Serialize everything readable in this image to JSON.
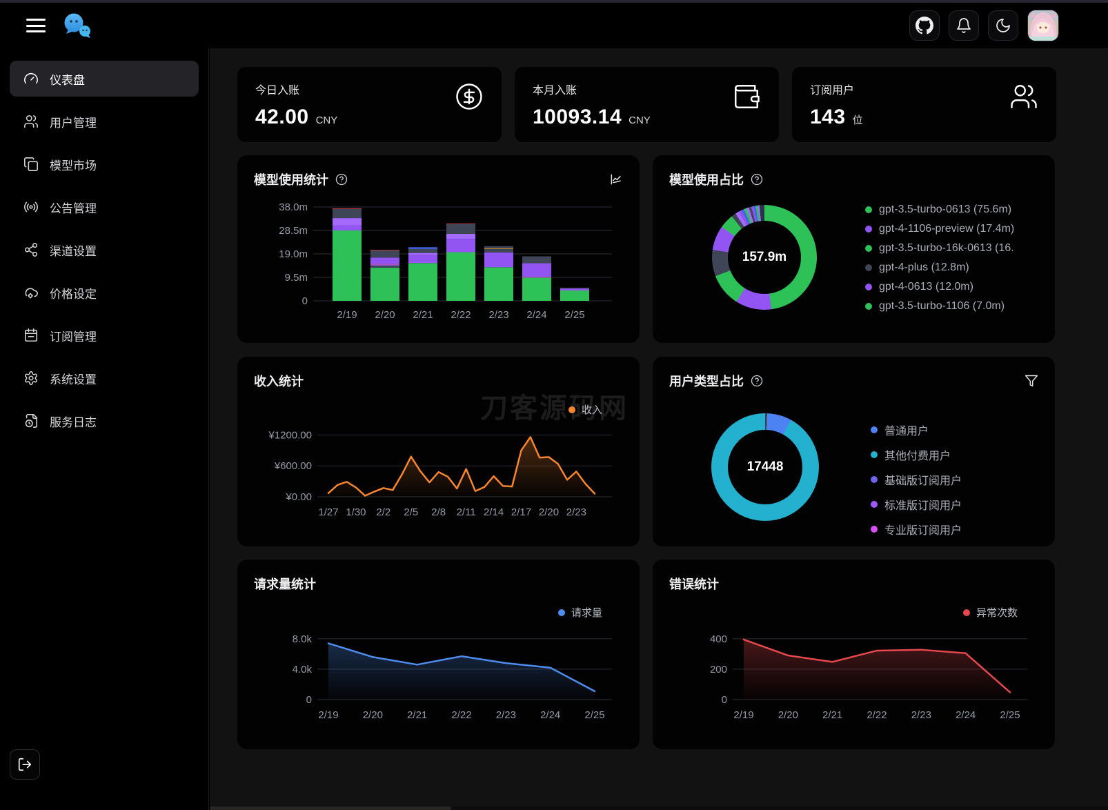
{
  "topbar": {
    "logo": "chat-bubbles-logo",
    "buttons": [
      {
        "icon": "github"
      },
      {
        "icon": "bell"
      },
      {
        "icon": "moon"
      }
    ]
  },
  "sidebar": {
    "items": [
      {
        "label": "仪表盘",
        "icon": "gauge",
        "active": true
      },
      {
        "label": "用户管理",
        "icon": "users"
      },
      {
        "label": "模型市场",
        "icon": "copy"
      },
      {
        "label": "公告管理",
        "icon": "broadcast"
      },
      {
        "label": "渠道设置",
        "icon": "share-nodes"
      },
      {
        "label": "价格设定",
        "icon": "cloud-gear"
      },
      {
        "label": "订阅管理",
        "icon": "calendar"
      },
      {
        "label": "系统设置",
        "icon": "gear"
      },
      {
        "label": "服务日志",
        "icon": "file-clock"
      }
    ]
  },
  "stats": [
    {
      "title": "今日入账",
      "value": "42.00",
      "unit": "CNY",
      "icon": "dollar-circle"
    },
    {
      "title": "本月入账",
      "value": "10093.14",
      "unit": "CNY",
      "icon": "wallet"
    },
    {
      "title": "订阅用户",
      "value": "143",
      "unit": "位",
      "icon": "users"
    }
  ],
  "watermark": "刀客源码网",
  "chart_data": [
    {
      "type": "bar",
      "title": "模型使用统计",
      "stacked": true,
      "categories": [
        "2/19",
        "2/20",
        "2/21",
        "2/22",
        "2/23",
        "2/24",
        "2/25"
      ],
      "ymax": 38,
      "yticks": [
        {
          "v": 38,
          "label": "38.0m"
        },
        {
          "v": 28.5,
          "label": "28.5m"
        },
        {
          "v": 19,
          "label": "19.0m"
        },
        {
          "v": 9.5,
          "label": "9.5m"
        },
        {
          "v": 0,
          "label": "0"
        }
      ],
      "unit": "million tokens",
      "bars": [
        {
          "segments": [
            [
              "#2dc158",
              28.5
            ],
            [
              "#9254f2",
              2.1
            ],
            [
              "#a56bff",
              2.9
            ],
            [
              "#3d4557",
              3.7
            ],
            [
              "#e5484d",
              0.2
            ]
          ]
        },
        {
          "segments": [
            [
              "#2dc158",
              13.4
            ],
            [
              "#3d4557",
              0.9
            ],
            [
              "#a56bff",
              0.4
            ],
            [
              "#d6409f",
              0.2
            ],
            [
              "#9254f2",
              2.6
            ],
            [
              "#3d4557",
              2.9
            ],
            [
              "#e5484d",
              0.2
            ]
          ]
        },
        {
          "segments": [
            [
              "#2dc158",
              15.3
            ],
            [
              "#9254f2",
              3.2
            ],
            [
              "#a56bff",
              0.9
            ],
            [
              "#3d4557",
              1.6
            ],
            [
              "#4263eb",
              0.7
            ]
          ]
        },
        {
          "segments": [
            [
              "#2dc158",
              19.7
            ],
            [
              "#9254f2",
              5.4
            ],
            [
              "#a56bff",
              2.0
            ],
            [
              "#3d4557",
              4.0
            ],
            [
              "#e5484d",
              0.2
            ]
          ]
        },
        {
          "segments": [
            [
              "#2dc158",
              13.6
            ],
            [
              "#9254f2",
              6.0
            ],
            [
              "#3d4557",
              1.4
            ],
            [
              "#f5a623",
              0.2
            ],
            [
              "#3d4557",
              0.9
            ]
          ]
        },
        {
          "segments": [
            [
              "#2dc158",
              9.4
            ],
            [
              "#d6409f",
              0.2
            ],
            [
              "#9254f2",
              5.6
            ],
            [
              "#3d4557",
              2.8
            ]
          ]
        },
        {
          "segments": [
            [
              "#2dc158",
              4.2
            ],
            [
              "#9254f2",
              0.8
            ],
            [
              "#3d4557",
              0.3
            ]
          ]
        }
      ]
    },
    {
      "type": "donut",
      "title": "模型使用占比",
      "center_label": "157.9m",
      "legend": [
        {
          "color": "#2dc158",
          "label": "gpt-3.5-turbo-0613 (75.6m)"
        },
        {
          "color": "#9254f2",
          "label": "gpt-4-1106-preview (17.4m)"
        },
        {
          "color": "#2dc158",
          "label": "gpt-3.5-turbo-16k-0613 (16."
        },
        {
          "color": "#3d4557",
          "label": "gpt-4-plus (12.8m)"
        },
        {
          "color": "#9254f2",
          "label": "gpt-4-0613 (12.0m)"
        },
        {
          "color": "#2dc158",
          "label": "gpt-3.5-turbo-1106 (7.0m)"
        }
      ],
      "segments": [
        [
          "#2dc158",
          75.6
        ],
        [
          "#9254f2",
          17.4
        ],
        [
          "#2dc158",
          16.2
        ],
        [
          "#3d4557",
          12.8
        ],
        [
          "#9254f2",
          12.0
        ],
        [
          "#2dc158",
          7.0
        ],
        [
          "#3d4557",
          2.2
        ],
        [
          "#a56bff",
          1.8
        ],
        [
          "#9254f2",
          1.5
        ],
        [
          "#4263eb",
          1.3
        ],
        [
          "#2dc158",
          1.3
        ],
        [
          "#a56bff",
          1.2
        ],
        [
          "#3d4557",
          1.2
        ],
        [
          "#9254f2",
          1.1
        ],
        [
          "#4263eb",
          1.0
        ],
        [
          "#2dc158",
          1.0
        ],
        [
          "#a56bff",
          0.9
        ],
        [
          "#273349",
          2.4
        ]
      ]
    },
    {
      "type": "line",
      "title": "收入统计",
      "legend": "收入",
      "color": "#f9862c",
      "ymax": 1300,
      "grid": [
        {
          "v": 1200,
          "label": "¥1200.00"
        },
        {
          "v": 600,
          "label": "¥600.00"
        },
        {
          "v": 0,
          "label": "¥0.00"
        }
      ],
      "x_labels": [
        "1/27",
        "1/30",
        "2/2",
        "2/5",
        "2/8",
        "2/11",
        "2/14",
        "2/17",
        "2/20",
        "2/23"
      ],
      "label_every": 3,
      "values": [
        70,
        230,
        290,
        180,
        20,
        100,
        170,
        130,
        430,
        780,
        500,
        280,
        480,
        390,
        160,
        540,
        110,
        190,
        400,
        210,
        200,
        900,
        1160,
        760,
        770,
        640,
        330,
        490,
        250,
        60
      ]
    },
    {
      "type": "donut",
      "title": "用户类型占比",
      "center_label": "17448",
      "legend": [
        {
          "color": "#4d82f3",
          "label": "普通用户"
        },
        {
          "color": "#24b0cf",
          "label": "其他付费用户"
        },
        {
          "color": "#6e63e6",
          "label": "基础版订阅用户"
        },
        {
          "color": "#9b59f5",
          "label": "标准版订阅用户"
        },
        {
          "color": "#d54ff2",
          "label": "专业版订阅用户"
        }
      ],
      "segments": [
        [
          "#3c4254",
          0.6
        ],
        [
          "#4d82f3",
          7.4
        ],
        [
          "#24b0cf",
          92.0
        ]
      ]
    },
    {
      "type": "line",
      "title": "请求量统计",
      "legend": "请求量",
      "color": "#4e8df0",
      "ymax": 8800,
      "grid": [
        {
          "v": 8000,
          "label": "8.0k"
        },
        {
          "v": 4000,
          "label": "4.0k"
        },
        {
          "v": 0,
          "label": "0"
        }
      ],
      "x_labels": [
        "2/19",
        "2/20",
        "2/21",
        "2/22",
        "2/23",
        "2/24",
        "2/25"
      ],
      "label_every": 1,
      "values": [
        7400,
        5600,
        4600,
        5700,
        4800,
        4200,
        1100
      ]
    },
    {
      "type": "line",
      "title": "错误统计",
      "legend": "异常次数",
      "color": "#e5484d",
      "ymax": 440,
      "grid": [
        {
          "v": 400,
          "label": "400"
        },
        {
          "v": 200,
          "label": "200"
        },
        {
          "v": 0,
          "label": "0"
        }
      ],
      "x_labels": [
        "2/19",
        "2/20",
        "2/21",
        "2/22",
        "2/23",
        "2/24",
        "2/25"
      ],
      "label_every": 1,
      "values": [
        395,
        290,
        248,
        322,
        328,
        305,
        48
      ]
    }
  ]
}
